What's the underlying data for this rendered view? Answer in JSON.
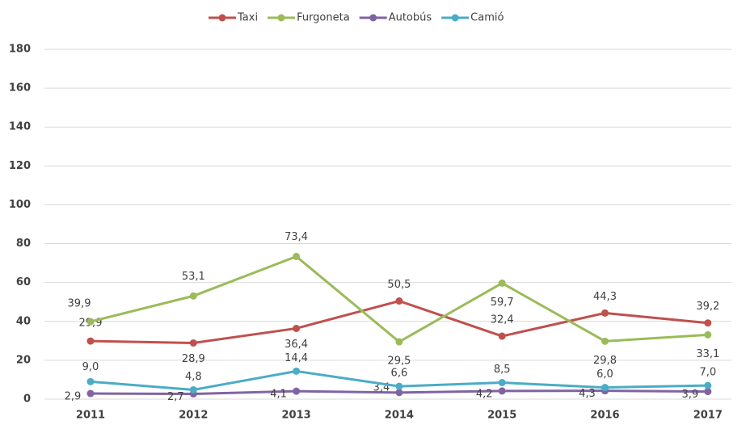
{
  "chart_data": {
    "type": "line",
    "categories": [
      "2011",
      "2012",
      "2013",
      "2014",
      "2015",
      "2016",
      "2017"
    ],
    "series": [
      {
        "name": "Taxi",
        "color": "#c0504d",
        "values": [
          29.9,
          28.9,
          36.4,
          50.5,
          32.4,
          44.3,
          39.2
        ],
        "value_labels": [
          "29,9",
          "28,9",
          "36,4",
          "50,5",
          "32,4",
          "44,3",
          "39,2"
        ]
      },
      {
        "name": "Furgoneta",
        "color": "#9bbb59",
        "values": [
          39.9,
          53.1,
          73.4,
          29.5,
          59.7,
          29.8,
          33.1
        ],
        "value_labels": [
          "39,9",
          "53,1",
          "73,4",
          "29,5",
          "59,7",
          "29,8",
          "33,1"
        ]
      },
      {
        "name": "Autobús",
        "color": "#8064a2",
        "values": [
          2.9,
          2.7,
          4.1,
          3.4,
          4.2,
          4.3,
          3.9
        ],
        "value_labels": [
          "2,9",
          "2,7",
          "4,1",
          "3,4",
          "4,2",
          "4,3",
          "3,9"
        ]
      },
      {
        "name": "Camió",
        "color": "#4bacc6",
        "values": [
          9.0,
          4.8,
          14.4,
          6.6,
          8.5,
          6.0,
          7.0
        ],
        "value_labels": [
          "9,0",
          "4,8",
          "14,4",
          "6,6",
          "8,5",
          "6,0",
          "7,0"
        ]
      }
    ],
    "ylim": [
      0,
      180
    ],
    "yticks": [
      0,
      20,
      40,
      60,
      80,
      100,
      120,
      140,
      160,
      180
    ],
    "grid": true,
    "legend": "top"
  }
}
